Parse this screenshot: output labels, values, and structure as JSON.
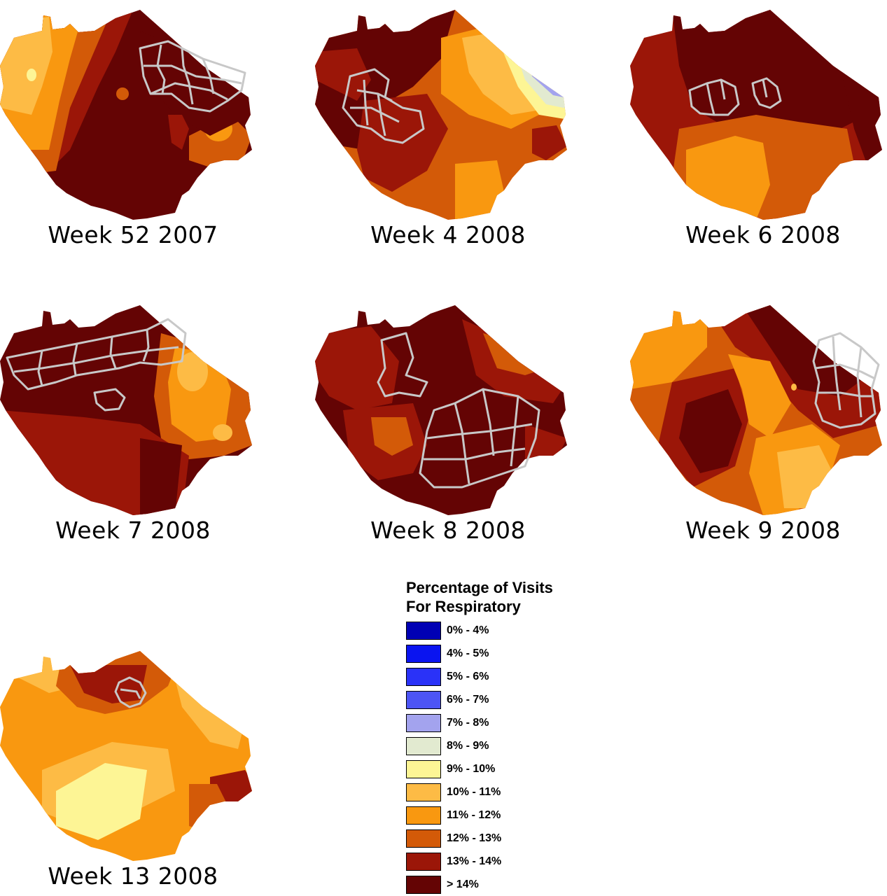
{
  "palette": {
    "c0": "#0000B4",
    "c1": "#0A14F0",
    "c2": "#2A32F8",
    "c3": "#4D55F5",
    "c4": "#A3A3EE",
    "c5": "#E2EAD0",
    "c6": "#FDF595",
    "c7": "#FDBB45",
    "c8": "#F99810",
    "c9": "#D35A08",
    "c10": "#9B1608",
    "c11": "#640404"
  },
  "boundary_color": "#C8C8C8",
  "panels": [
    {
      "id": "w52",
      "label": "Week 52 2007",
      "base": "c11"
    },
    {
      "id": "w4",
      "label": "Week 4 2008",
      "base": "c9"
    },
    {
      "id": "w6",
      "label": "Week 6 2008",
      "base": "c10"
    },
    {
      "id": "w7",
      "label": "Week 7 2008",
      "base": "c11"
    },
    {
      "id": "w8",
      "label": "Week 8 2008",
      "base": "c11"
    },
    {
      "id": "w9",
      "label": "Week 9 2008",
      "base": "c9"
    },
    {
      "id": "w13",
      "label": "Week 13 2008",
      "base": "c8"
    }
  ],
  "legend": {
    "title_line1": "Percentage of Visits",
    "title_line2": "For Respiratory",
    "items": [
      {
        "label": "0% - 4%",
        "color": "#0000B4"
      },
      {
        "label": "4% - 5%",
        "color": "#0A14F0"
      },
      {
        "label": "5% - 6%",
        "color": "#2A32F8"
      },
      {
        "label": "6% - 7%",
        "color": "#4D55F5"
      },
      {
        "label": "7% - 8%",
        "color": "#A3A3EE"
      },
      {
        "label": "8% - 9%",
        "color": "#E2EAD0"
      },
      {
        "label": "9% - 10%",
        "color": "#FDF595"
      },
      {
        "label": "10% - 11%",
        "color": "#FDBB45"
      },
      {
        "label": "11% - 12%",
        "color": "#F99810"
      },
      {
        "label": "12% - 13%",
        "color": "#D35A08"
      },
      {
        "label": "13% - 14%",
        "color": "#9B1608"
      },
      {
        "label": "> 14%",
        "color": "#640404"
      }
    ]
  }
}
